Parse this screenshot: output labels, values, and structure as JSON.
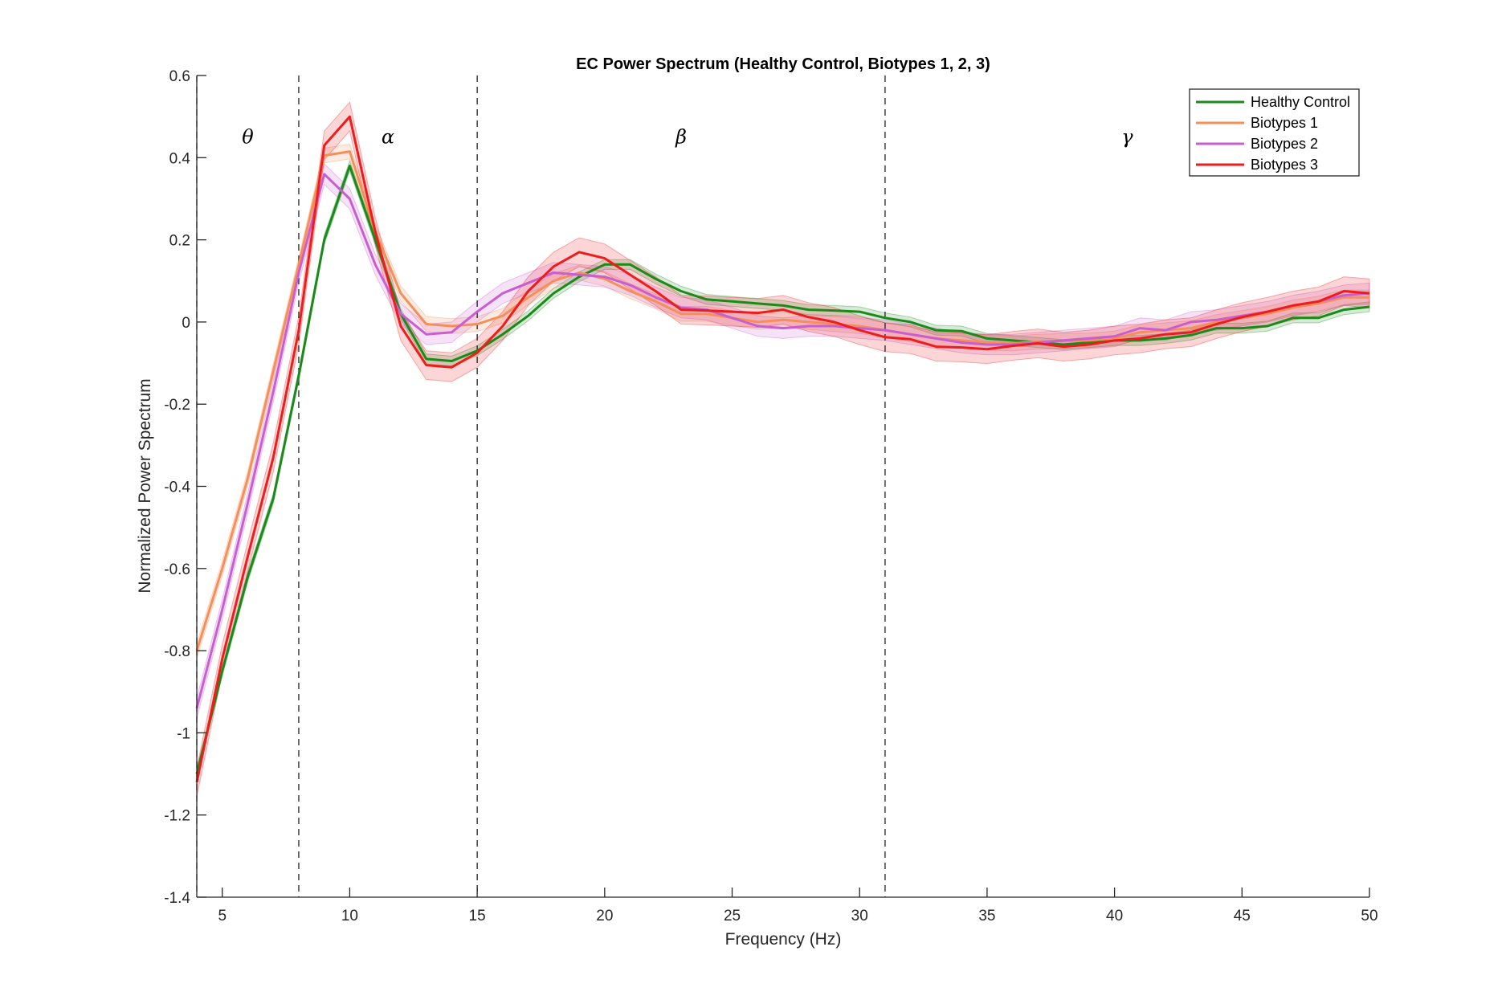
{
  "chart_data": {
    "type": "line",
    "title": "EC Power Spectrum (Healthy Control, Biotypes 1, 2, 3)",
    "xlabel": "Frequency (Hz)",
    "ylabel": "Normalized Power Spectrum",
    "xlim": [
      4,
      50
    ],
    "ylim": [
      -1.4,
      0.6
    ],
    "x_ticks": [
      5,
      10,
      15,
      20,
      25,
      30,
      35,
      40,
      45,
      50
    ],
    "y_ticks": [
      -1.4,
      -1.2,
      -1,
      -0.8,
      -0.6,
      -0.4,
      -0.2,
      0,
      0.2,
      0.4,
      0.6
    ],
    "x_tick_labels": [
      "5",
      "10",
      "15",
      "20",
      "25",
      "30",
      "35",
      "40",
      "45",
      "50"
    ],
    "y_tick_labels": [
      "-1.4",
      "-1.2",
      "-1",
      "-0.8",
      "-0.6",
      "-0.4",
      "-0.2",
      "0",
      "0.2",
      "0.4",
      "0.6"
    ],
    "grid": false,
    "legend_position": "top-right",
    "band_boundaries": [
      4,
      8,
      15,
      31
    ],
    "band_labels": [
      {
        "label": "θ",
        "x": 6,
        "y": 0.45
      },
      {
        "label": "α",
        "x": 11.5,
        "y": 0.45
      },
      {
        "label": "β",
        "x": 23,
        "y": 0.45
      },
      {
        "label": "γ",
        "x": 40.5,
        "y": 0.45
      }
    ],
    "x": [
      4,
      5,
      6,
      7,
      8,
      9,
      10,
      11,
      12,
      13,
      14,
      15,
      16,
      17,
      18,
      19,
      20,
      21,
      22,
      23,
      24,
      25,
      26,
      27,
      28,
      29,
      30,
      31,
      32,
      33,
      34,
      35,
      36,
      37,
      38,
      39,
      40,
      41,
      42,
      43,
      44,
      45,
      46,
      47,
      48,
      49,
      50
    ],
    "series": [
      {
        "name": "Healthy Control",
        "color": "#1a8a1a",
        "band": 0.012,
        "values": [
          -1.1,
          -0.85,
          -0.62,
          -0.43,
          -0.13,
          0.2,
          0.38,
          0.2,
          0.02,
          -0.09,
          -0.095,
          -0.07,
          -0.03,
          0.015,
          0.07,
          0.11,
          0.14,
          0.14,
          0.105,
          0.075,
          0.055,
          0.05,
          0.045,
          0.04,
          0.03,
          0.028,
          0.025,
          0.01,
          0.0,
          -0.02,
          -0.022,
          -0.04,
          -0.045,
          -0.05,
          -0.055,
          -0.05,
          -0.045,
          -0.045,
          -0.04,
          -0.032,
          -0.015,
          -0.015,
          -0.01,
          0.01,
          0.01,
          0.03,
          0.037
        ]
      },
      {
        "name": "Biotypes 1",
        "color": "#f58f5a",
        "band": 0.018,
        "values": [
          -0.8,
          -0.6,
          -0.38,
          -0.12,
          0.14,
          0.405,
          0.415,
          0.22,
          0.07,
          -0.005,
          -0.01,
          -0.005,
          0.015,
          0.06,
          0.1,
          0.12,
          0.105,
          0.075,
          0.05,
          0.02,
          0.02,
          0.01,
          0.0,
          0.005,
          0.0,
          -0.005,
          -0.01,
          -0.02,
          -0.03,
          -0.04,
          -0.045,
          -0.05,
          -0.052,
          -0.048,
          -0.046,
          -0.045,
          -0.04,
          -0.025,
          -0.02,
          -0.015,
          0.0,
          0.01,
          0.02,
          0.035,
          0.045,
          0.06,
          0.06
        ]
      },
      {
        "name": "Biotypes 2",
        "color": "#c95ed0",
        "band": 0.025,
        "values": [
          -0.94,
          -0.7,
          -0.44,
          -0.17,
          0.12,
          0.36,
          0.3,
          0.14,
          0.02,
          -0.03,
          -0.025,
          0.025,
          0.07,
          0.095,
          0.12,
          0.115,
          0.11,
          0.09,
          0.06,
          0.035,
          0.03,
          0.01,
          -0.01,
          -0.015,
          -0.01,
          -0.01,
          -0.015,
          -0.02,
          -0.03,
          -0.04,
          -0.05,
          -0.055,
          -0.055,
          -0.05,
          -0.045,
          -0.04,
          -0.035,
          -0.015,
          -0.02,
          0.0,
          0.005,
          0.015,
          0.025,
          0.04,
          0.05,
          0.065,
          0.07
        ]
      },
      {
        "name": "Biotypes 3",
        "color": "#ee1c1c",
        "band": 0.035,
        "values": [
          -1.12,
          -0.82,
          -0.57,
          -0.33,
          -0.02,
          0.43,
          0.5,
          0.22,
          -0.01,
          -0.105,
          -0.11,
          -0.075,
          -0.01,
          0.075,
          0.135,
          0.17,
          0.155,
          0.115,
          0.075,
          0.03,
          0.028,
          0.025,
          0.022,
          0.03,
          0.012,
          0.0,
          -0.02,
          -0.037,
          -0.042,
          -0.06,
          -0.062,
          -0.066,
          -0.058,
          -0.052,
          -0.06,
          -0.055,
          -0.045,
          -0.04,
          -0.03,
          -0.025,
          -0.005,
          0.012,
          0.025,
          0.04,
          0.05,
          0.075,
          0.07
        ]
      }
    ]
  }
}
